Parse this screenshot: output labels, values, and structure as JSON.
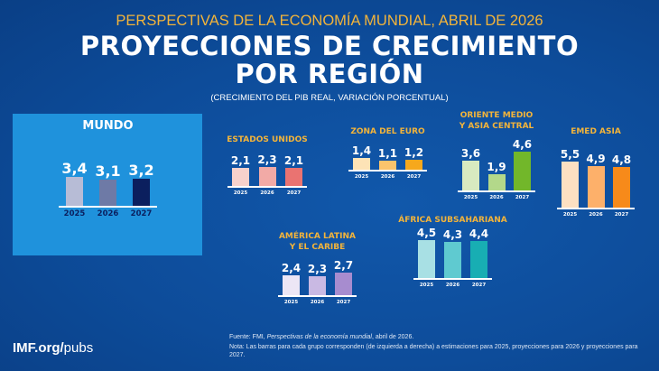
{
  "header": {
    "supertitle": "PERSPECTIVAS DE LA ECONOMÍA MUNDIAL, ABRIL DE 2026",
    "title_line1": "PROYECCIONES DE CRECIMIENTO",
    "title_line2": "POR REGIÓN",
    "subtitle": "(CRECIMIENTO DEL PIB REAL, VARIACIÓN PORCENTUAL)"
  },
  "chart_data": {
    "type": "bar",
    "categories": [
      "2025",
      "2026",
      "2027"
    ],
    "panels": [
      {
        "name": "MUNDO",
        "values": [
          3.4,
          3.1,
          3.2
        ],
        "labels": [
          "3,4",
          "3,1",
          "3,2"
        ],
        "colors": [
          "#b7bcd6",
          "#6e7aa6",
          "#0b1f5e"
        ]
      },
      {
        "name": "ESTADOS UNIDOS",
        "values": [
          2.1,
          2.3,
          2.1
        ],
        "labels": [
          "2,1",
          "2,3",
          "2,1"
        ],
        "colors": [
          "#f7d1cc",
          "#f2aaa6",
          "#ea7371"
        ]
      },
      {
        "name": "ZONA DEL EURO",
        "values": [
          1.4,
          1.1,
          1.2
        ],
        "labels": [
          "1,4",
          "1,1",
          "1,2"
        ],
        "colors": [
          "#fde3b6",
          "#fbc46c",
          "#f6a81c"
        ]
      },
      {
        "name": "ORIENTE MEDIO\nY ASIA CENTRAL",
        "values": [
          3.6,
          1.9,
          4.6
        ],
        "labels": [
          "3,6",
          "1,9",
          "4,6"
        ],
        "colors": [
          "#d8eac0",
          "#b3d88a",
          "#72b72a"
        ]
      },
      {
        "name": "EMED ASIA",
        "values": [
          5.5,
          4.9,
          4.8
        ],
        "labels": [
          "5,5",
          "4,9",
          "4,8"
        ],
        "colors": [
          "#fde0c2",
          "#fdb06a",
          "#f78a1a"
        ]
      },
      {
        "name": "ÁFRICA SUBSAHARIANA",
        "values": [
          4.5,
          4.3,
          4.4
        ],
        "labels": [
          "4,5",
          "4,3",
          "4,4"
        ],
        "colors": [
          "#a8e0e4",
          "#5fcad0",
          "#18aeb3"
        ]
      },
      {
        "name": "AMÉRICA LATINA\nY EL CARIBE",
        "values": [
          2.4,
          2.3,
          2.7
        ],
        "labels": [
          "2,4",
          "2,3",
          "2,7"
        ],
        "colors": [
          "#ece6f5",
          "#c9b9e3",
          "#a78ccf"
        ]
      }
    ]
  },
  "footer": {
    "logo_bold": "IMF.org/",
    "logo_light": "pubs",
    "source_prefix": "Fuente: FMI, ",
    "source_italic": "Perspectivas de la economía mundial",
    "source_suffix": ", abril de 2026.",
    "note": "Nota: Las barras para cada grupo corresponden (de izquierda a derecha) a estimaciones para 2025, proyecciones para 2026 y proyecciones para 2027."
  },
  "colors": {
    "background": "#0d4c9a",
    "mundo_box": "#1f92dc",
    "panel_title": "#f3b43a"
  }
}
